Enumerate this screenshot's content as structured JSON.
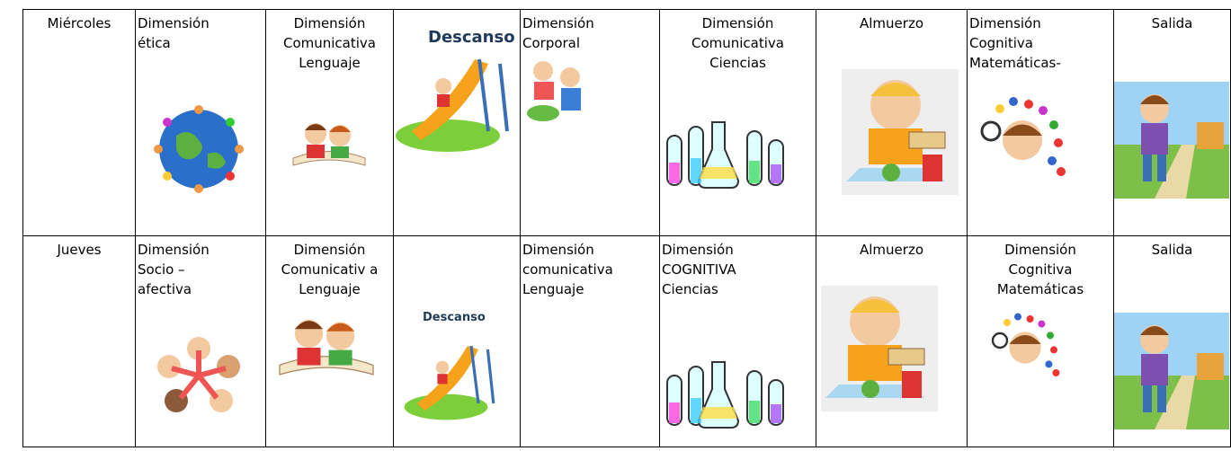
{
  "table": {
    "rows": [
      {
        "day": "Miércoles",
        "cells": [
          {
            "lines": [
              "Dimensión",
              "ética"
            ]
          },
          {
            "lines": [
              "Dimensión",
              "Comunicativa",
              "Lenguaje"
            ]
          },
          {
            "image_text": "Descanso"
          },
          {
            "lines": [
              "Dimensión",
              "Corporal"
            ]
          },
          {
            "lines": [
              "Dimensión",
              "Comunicativa",
              "Ciencias"
            ]
          },
          {
            "lines": [
              "Almuerzo"
            ]
          },
          {
            "lines": [
              "Dimensión",
              "Cognitiva",
              "Matemáticas-"
            ]
          },
          {
            "lines": [
              "Salida"
            ]
          }
        ]
      },
      {
        "day": "Jueves",
        "cells": [
          {
            "lines": [
              "Dimensión",
              "Socio –",
              "afectiva"
            ]
          },
          {
            "lines": [
              "Dimensión",
              "Comunicativ a",
              "Lenguaje"
            ]
          },
          {
            "image_text": "Descanso"
          },
          {
            "lines": [
              "Dimensión",
              "comunicativa",
              "Lenguaje"
            ]
          },
          {
            "lines": [
              "Dimensión",
              "COGNITIVA",
              "Ciencias"
            ]
          },
          {
            "lines": [
              "Almuerzo"
            ]
          },
          {
            "lines": [
              "Dimensión",
              "Cognitiva",
              "Matemáticas"
            ]
          },
          {
            "lines": [
              "Salida"
            ]
          }
        ]
      }
    ]
  }
}
